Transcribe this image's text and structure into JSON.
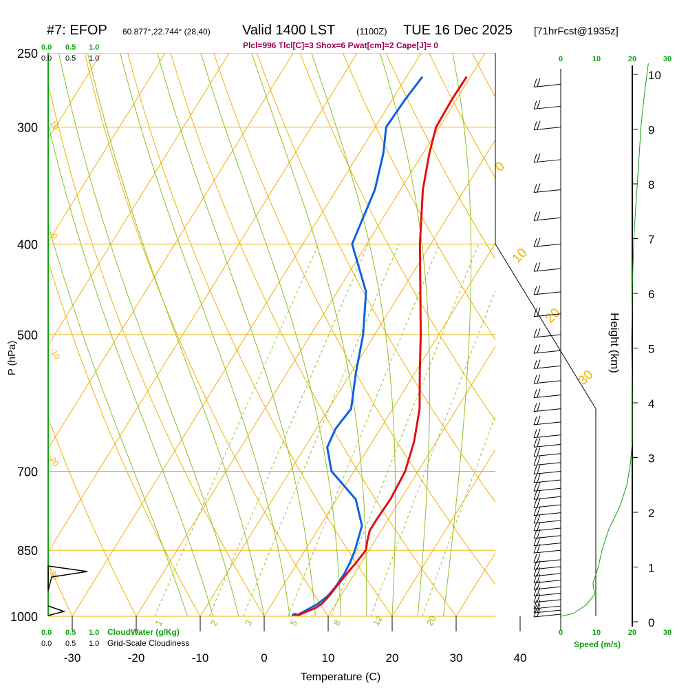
{
  "header": {
    "station": "#7: EFOP",
    "coords": "60.877°,22.744° (28,40)",
    "valid_main": "Valid 1400 LST",
    "valid_utc": "(1100Z)",
    "valid_date": "TUE 16 Dec 2025",
    "forecast": "[71hrFcst@1935z]"
  },
  "indices": "Plcl=996 Tlcl[C]=3 Shox=6 Pwat[cm]=2 Cape[J]= 0",
  "colors": {
    "isobar": "#f0b000",
    "isotherm": "#f0b000",
    "dry_adiabat": "#f0b000",
    "moist_adiabat": "#90c020",
    "mixing_ratio": "#90c020",
    "temperature": "#e01010",
    "dewpoint": "#1060e0",
    "cloud": "#10a010",
    "indices_text": "#a00050",
    "barb": "#000000"
  },
  "chart_data": {
    "type": "line",
    "title": "#7: EFOP 60.877°,22.744° (28,40) Valid 1400 LST (1100Z) TUE 16 Dec 2025 [71hrFcst@1935z]",
    "xlabel": "Temperature (C)",
    "ylabel": "P (hPa)",
    "y2label": "Height (km)",
    "xlim": [
      -35,
      45
    ],
    "ylim": [
      1000,
      250
    ],
    "y_scale": "log",
    "x_ticks": [
      -30,
      -20,
      -10,
      0,
      10,
      20,
      30,
      40
    ],
    "x_tick_labels": [
      "-30",
      "-20",
      "-10",
      "0",
      "10",
      "20",
      "30",
      "40"
    ],
    "p_ticks": [
      250,
      300,
      400,
      500,
      700,
      850,
      1000
    ],
    "p_tick_labels": [
      "250",
      "300",
      "400",
      "500",
      "700",
      "850",
      "1000"
    ],
    "height_ticks": [
      0,
      1,
      2,
      3,
      4,
      5,
      6,
      7,
      8,
      9,
      10
    ],
    "height_tick_labels": [
      "0",
      "1",
      "2",
      "3",
      "4",
      "5",
      "6",
      "7",
      "8",
      "9",
      "10"
    ],
    "series": [
      {
        "name": "Temperature",
        "pressure": [
          1000,
          990,
          980,
          970,
          950,
          930,
          900,
          875,
          850,
          830,
          810,
          790,
          750,
          700,
          650,
          600,
          550,
          500,
          450,
          400,
          350,
          320,
          300,
          280,
          265
        ],
        "values": [
          5,
          6,
          7.2,
          7.8,
          8.2,
          8.4,
          8.8,
          9.2,
          9.5,
          8.8,
          8.2,
          8.2,
          8.4,
          8.0,
          6.5,
          4.2,
          0.8,
          -2.8,
          -7.0,
          -11.7,
          -16.5,
          -19.0,
          -20.5,
          -20.7,
          -20.6
        ]
      },
      {
        "name": "Dewpoint",
        "pressure": [
          1000,
          990,
          980,
          970,
          950,
          930,
          900,
          875,
          850,
          800,
          750,
          700,
          660,
          630,
          600,
          550,
          500,
          450,
          400,
          350,
          320,
          300,
          280,
          265
        ],
        "values": [
          4.8,
          5.6,
          6.4,
          7.2,
          8.0,
          8.3,
          8.4,
          8.2,
          7.8,
          6.5,
          3.0,
          -3.5,
          -6.5,
          -7.0,
          -6.5,
          -9.2,
          -11.8,
          -15.5,
          -22.3,
          -24.0,
          -26.2,
          -28.3,
          -28.0,
          -27.5
        ]
      }
    ],
    "isotherm_labels": [
      "-10",
      "0",
      "10",
      "20",
      "30"
    ],
    "dry_adiabat_labels": [
      "10",
      "0",
      "-10",
      "-20",
      "-30"
    ],
    "mixing_ratio_labels": [
      "1",
      "2",
      "3",
      "5",
      "8",
      "12",
      "20"
    ],
    "mixing_ratios": [
      1,
      2,
      3,
      5,
      8,
      12,
      20
    ],
    "moist_adiabat_starts": [
      -12,
      -8,
      -4,
      0,
      4,
      8,
      12,
      16,
      20,
      24,
      28
    ],
    "cloud_scale_top": [
      "0.0",
      "0.5",
      "1.0"
    ],
    "cloud_scale_label_top": [
      "0.0",
      "0.5",
      "1.0"
    ],
    "cloud_scale_bottom": [
      "0.0",
      "0.5",
      "1.0"
    ],
    "cloud_scale_bottom_label": [
      "0.0",
      "0.5",
      "1.0"
    ],
    "cloudwater_label": "CloudWater (g/Kg)",
    "cloudiness_label": "Grid-Scale Cloudiness",
    "speed_label": "Speed (m/s)",
    "speed_ticks": [
      "0",
      "10",
      "20",
      "30"
    ],
    "speed_ticks_bottom": [
      "0",
      "10",
      "20",
      "30"
    ],
    "speed_profile": {
      "height_km": [
        0,
        0.05,
        0.2,
        0.4,
        0.6,
        0.9,
        1.2,
        1.6,
        2.0,
        2.4,
        2.8,
        3.2,
        4,
        5,
        6,
        7,
        8,
        9,
        9.6,
        10.1
      ],
      "speed": [
        0,
        3.5,
        7,
        9.5,
        9,
        10.5,
        11.5,
        13.5,
        16.5,
        18.5,
        19.5,
        20,
        20,
        19.8,
        20,
        20.5,
        21.5,
        22.5,
        23.5,
        24.5
      ]
    },
    "wind_barbs": {
      "pressure": [
        995,
        985,
        975,
        960,
        945,
        930,
        915,
        900,
        885,
        870,
        850,
        835,
        820,
        805,
        790,
        775,
        760,
        745,
        730,
        715,
        700,
        685,
        670,
        655,
        640,
        620,
        600,
        580,
        560,
        540,
        520,
        500,
        475,
        450,
        425,
        400,
        375,
        350,
        325,
        300,
        285,
        270
      ],
      "barbs": [
        1,
        1,
        1,
        1,
        1,
        1,
        1,
        1,
        1,
        1,
        1,
        1,
        1,
        1,
        1,
        1,
        1,
        1,
        1,
        1,
        1,
        1,
        1,
        1,
        1,
        1,
        1,
        1,
        1,
        1,
        1,
        1,
        1,
        1,
        1,
        1,
        1,
        1,
        1,
        1,
        1,
        1
      ]
    }
  }
}
